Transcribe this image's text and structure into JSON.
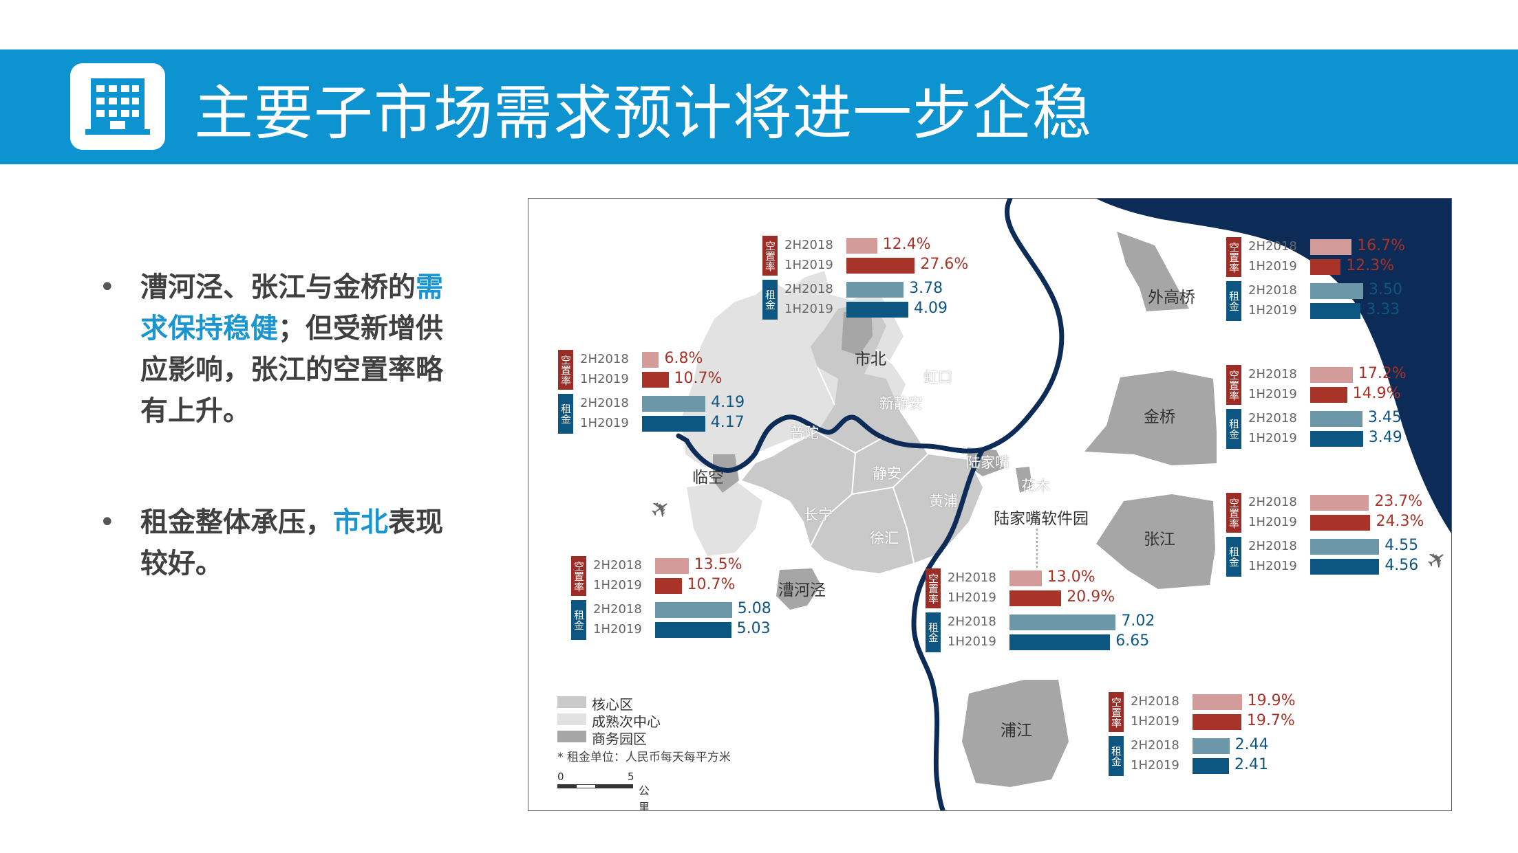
{
  "slide": {
    "title": "主要子市场需求预计将进一步企稳",
    "logo_icon": "office-building-icon"
  },
  "bullets": [
    {
      "parts": [
        {
          "text": "漕河泾、张江与金桥的",
          "hl": false
        },
        {
          "text": "需求保持稳健",
          "hl": true
        },
        {
          "text": "；但受新增供应影响，张江的空置率略有上升。",
          "hl": false
        }
      ]
    },
    {
      "parts": [
        {
          "text": "租金整体承压，",
          "hl": false
        },
        {
          "text": "市北",
          "hl": true
        },
        {
          "text": "表现较好。",
          "hl": false
        }
      ]
    }
  ],
  "map": {
    "colors": {
      "core": "#c9c9c9",
      "mature": "#e2e2e2",
      "park": "#a6a6a6",
      "river": "#0c2c57",
      "sea": "#0c2c57",
      "vac_2h2018": "#d39b9a",
      "vac_1h2019": "#a83329",
      "rent_2h2018": "#6b97a9",
      "rent_1h2019": "#0e5682",
      "vac_text": "#a83329",
      "rent_text": "#0e5682"
    },
    "zone_labels": {
      "shibei": "市北",
      "hongkou": "虹口",
      "xinjingan": "新静安",
      "putuo": "普陀",
      "linkong": "临空",
      "jingan": "静安",
      "changning": "长宁",
      "huangpu": "黄浦",
      "xuhui": "徐汇",
      "caohejing": "漕河泾",
      "lujiazui": "陆家嘴",
      "huamu": "花木",
      "lujiazui_software": "陆家嘴软件园",
      "waigaoqiao": "外高桥",
      "jinqiao": "金桥",
      "zhangjiang": "张江",
      "pujiang": "浦江"
    },
    "icons": [
      "airplane-icon",
      "airplane-icon"
    ],
    "legend": {
      "items": [
        {
          "label": "核心区",
          "color": "#c9c9c9"
        },
        {
          "label": "成熟次中心",
          "color": "#e2e2e2"
        },
        {
          "label": "商务园区",
          "color": "#a6a6a6"
        }
      ],
      "note": "* 租金单位：人民币每天每平方米",
      "scale_zero": "0",
      "scale_five": "5",
      "scale_unit": "公里"
    },
    "vacancy_tag": "空置率",
    "rent_tag": "租金",
    "period_a": "2H2018",
    "period_b": "1H2019"
  },
  "chart_data": {
    "type": "bar",
    "units": {
      "vacancy": "%",
      "rent": "人民币每天每平方米"
    },
    "periods": [
      "2H2018",
      "1H2019"
    ],
    "markets": [
      {
        "market": "市北",
        "vacancy": [
          12.4,
          27.6
        ],
        "vacancy_label": [
          "12.4%",
          "27.6%"
        ],
        "rent": [
          3.78,
          4.09
        ],
        "rent_label": [
          "3.78",
          "4.09"
        ]
      },
      {
        "market": "临空",
        "vacancy": [
          6.8,
          10.7
        ],
        "vacancy_label": [
          "6.8%",
          "10.7%"
        ],
        "rent": [
          4.19,
          4.17
        ],
        "rent_label": [
          "4.19",
          "4.17"
        ]
      },
      {
        "market": "漕河泾",
        "vacancy": [
          13.5,
          10.7
        ],
        "vacancy_label": [
          "13.5%",
          "10.7%"
        ],
        "rent": [
          5.08,
          5.03
        ],
        "rent_label": [
          "5.08",
          "5.03"
        ]
      },
      {
        "market": "陆家嘴软件园",
        "vacancy": [
          13.0,
          20.9
        ],
        "vacancy_label": [
          "13.0%",
          "20.9%"
        ],
        "rent": [
          7.02,
          6.65
        ],
        "rent_label": [
          "7.02",
          "6.65"
        ]
      },
      {
        "market": "外高桥",
        "vacancy": [
          16.7,
          12.3
        ],
        "vacancy_label": [
          "16.7%",
          "12.3%"
        ],
        "rent": [
          3.5,
          3.33
        ],
        "rent_label": [
          "3.50",
          "3.33"
        ]
      },
      {
        "market": "金桥",
        "vacancy": [
          17.2,
          14.9
        ],
        "vacancy_label": [
          "17.2%",
          "14.9%"
        ],
        "rent": [
          3.45,
          3.49
        ],
        "rent_label": [
          "3.45",
          "3.49"
        ]
      },
      {
        "market": "张江",
        "vacancy": [
          23.7,
          24.3
        ],
        "vacancy_label": [
          "23.7%",
          "24.3%"
        ],
        "rent": [
          4.55,
          4.56
        ],
        "rent_label": [
          "4.55",
          "4.56"
        ]
      },
      {
        "market": "浦江",
        "vacancy": [
          19.9,
          19.7
        ],
        "vacancy_label": [
          "19.9%",
          "19.7%"
        ],
        "rent": [
          2.44,
          2.41
        ],
        "rent_label": [
          "2.44",
          "2.41"
        ]
      }
    ]
  }
}
